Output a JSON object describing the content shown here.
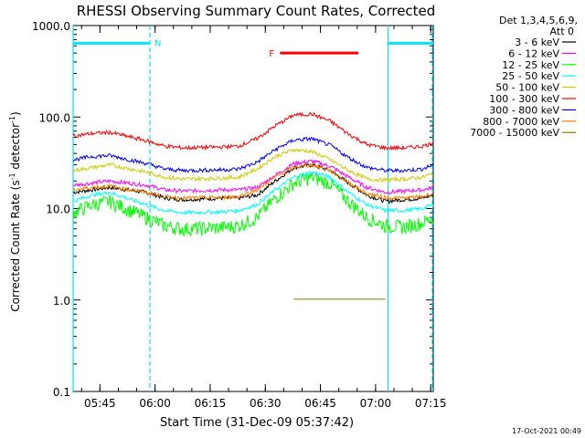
{
  "chart_data": {
    "type": "line",
    "title": "RHESSI Observing Summary Count Rates, Corrected",
    "xlabel": "Start Time (31-Dec-09 05:37:42)",
    "ylabel_main": "Corrected Count Rate (s",
    "ylabel_sup1": "-1",
    "ylabel_mid": " detector",
    "ylabel_sup2": "-1",
    "ylabel_end": ")",
    "y_scale": "log",
    "ylim": [
      0.1,
      1000
    ],
    "xlim_minutes": [
      0,
      98
    ],
    "y_ticks": [
      "1000.0",
      "100.0",
      "10.0",
      "1.0",
      "0.1"
    ],
    "x_ticks": [
      {
        "label": "05:45",
        "min": 7.3
      },
      {
        "label": "06:00",
        "min": 22.3
      },
      {
        "label": "06:15",
        "min": 37.3
      },
      {
        "label": "06:30",
        "min": 52.3
      },
      {
        "label": "06:45",
        "min": 67.3
      },
      {
        "label": "07:00",
        "min": 82.3
      },
      {
        "label": "07:15",
        "min": 97.3
      }
    ],
    "legend_header": [
      "Det 1,3,4,5,6,9,",
      "Att 0"
    ],
    "series": [
      {
        "name": "3 - 6 keV",
        "color": "#000000",
        "x": [
          0,
          10,
          20,
          25,
          30,
          40,
          45,
          50,
          55,
          60,
          65,
          70,
          75,
          80,
          85,
          90,
          95,
          98
        ],
        "y": [
          15,
          17,
          15,
          13,
          12.5,
          13,
          13,
          14,
          20,
          28,
          30,
          26,
          19,
          14,
          12,
          12.5,
          13,
          14
        ]
      },
      {
        "name": "6 - 12 keV",
        "color": "#ff00ff",
        "x": [
          0,
          10,
          20,
          25,
          30,
          40,
          45,
          50,
          55,
          60,
          65,
          70,
          75,
          80,
          85,
          90,
          95,
          98
        ],
        "y": [
          18,
          20,
          18,
          16,
          15.5,
          16,
          16,
          17,
          23,
          31,
          33,
          29,
          22,
          17,
          15,
          15.5,
          16,
          17
        ]
      },
      {
        "name": "12 - 25 keV",
        "color": "#00ff00",
        "x": [
          0,
          5,
          10,
          20,
          25,
          30,
          40,
          45,
          50,
          55,
          60,
          65,
          70,
          75,
          80,
          85,
          90,
          95,
          98
        ],
        "y": [
          9,
          11,
          12,
          8,
          6.5,
          6,
          6.2,
          6.5,
          8,
          13,
          19,
          22,
          19,
          12,
          8,
          6.5,
          6.3,
          7,
          8
        ]
      },
      {
        "name": "25 - 50 keV",
        "color": "#00ffff",
        "x": [
          0,
          5,
          10,
          20,
          25,
          30,
          40,
          45,
          50,
          55,
          60,
          65,
          70,
          75,
          80,
          85,
          90,
          95,
          98
        ],
        "y": [
          12,
          14,
          15,
          11,
          9.5,
          9,
          9.2,
          9.5,
          11,
          16,
          22,
          25,
          22,
          15,
          11,
          9.5,
          9.5,
          10,
          11
        ]
      },
      {
        "name": "50 - 100 keV",
        "color": "#cccc00",
        "x": [
          0,
          5,
          10,
          20,
          25,
          30,
          40,
          45,
          50,
          55,
          60,
          65,
          70,
          75,
          80,
          85,
          90,
          95,
          98
        ],
        "y": [
          26,
          28,
          30,
          25,
          22,
          21,
          21.5,
          22,
          27,
          37,
          44,
          42,
          34,
          26,
          21,
          20.5,
          21,
          22,
          24
        ]
      },
      {
        "name": "100 - 300 keV",
        "color": "#ff0000",
        "x": [
          0,
          5,
          10,
          20,
          25,
          30,
          40,
          45,
          50,
          55,
          60,
          65,
          70,
          75,
          80,
          85,
          90,
          95,
          98
        ],
        "y": [
          62,
          66,
          68,
          55,
          48,
          46,
          47,
          48,
          58,
          80,
          105,
          108,
          90,
          65,
          50,
          46,
          46,
          48,
          52
        ]
      },
      {
        "name": "300 - 800 keV",
        "color": "#0000ff",
        "x": [
          0,
          5,
          10,
          20,
          25,
          30,
          40,
          45,
          50,
          55,
          60,
          65,
          70,
          75,
          80,
          85,
          90,
          95,
          98
        ],
        "y": [
          34,
          37,
          38,
          31,
          27,
          26,
          26.5,
          27,
          32,
          44,
          56,
          58,
          49,
          36,
          28,
          26,
          26,
          27,
          30
        ]
      },
      {
        "name": "800 - 7000 keV",
        "color": "#ff8000",
        "x": [
          0,
          5,
          10,
          20,
          25,
          30,
          40,
          45,
          50,
          55,
          60,
          65,
          70,
          75,
          80,
          85,
          90,
          95,
          98
        ],
        "y": [
          16,
          17,
          17.5,
          15,
          13.5,
          13,
          13.2,
          13.5,
          16,
          22,
          28,
          30,
          26,
          19,
          14.5,
          13.2,
          13,
          13.5,
          14.5
        ]
      },
      {
        "name": "7000 - 15000 keV",
        "color": "#808000",
        "x": [
          60,
          61,
          62,
          63,
          64,
          65,
          66,
          67,
          68,
          69,
          70,
          71,
          72,
          73,
          74,
          75,
          76,
          77,
          78,
          79,
          80,
          81,
          82,
          83,
          84,
          85
        ],
        "y": [
          1.02,
          1.02,
          1.02,
          1.02,
          1.02,
          1.02,
          1.02,
          1.02,
          1.02,
          1.02,
          1.02,
          1.02,
          1.02,
          1.02,
          1.02,
          1.02,
          1.02,
          1.02,
          1.02,
          1.02,
          1.02,
          1.02,
          1.02,
          1.02,
          1.02,
          1.02
        ]
      }
    ],
    "annotations": {
      "night_label": "N",
      "flare_label": "F",
      "footer": "17-Oct-2021 00:49",
      "night_start_min": 0,
      "night_end_min": 20.9,
      "night2_start_min": 85.7,
      "night2_end_min": 98,
      "flare_start_min": 56.3,
      "flare_end_min": 77.6
    },
    "grid": false,
    "legend_position": "right"
  }
}
